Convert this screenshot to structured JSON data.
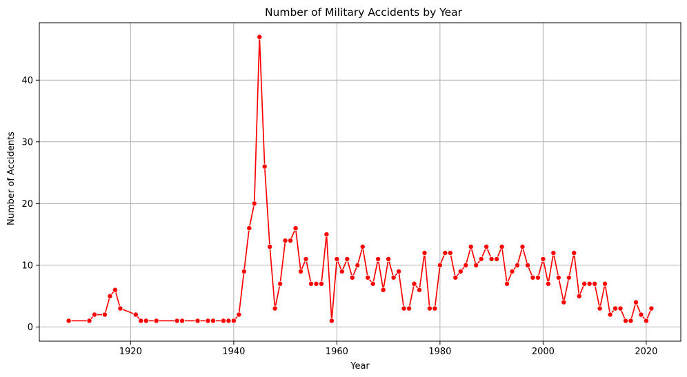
{
  "chart_data": {
    "type": "line",
    "title": "Number of Military Accidents by Year",
    "xlabel": "Year",
    "ylabel": "Number of Accidents",
    "xlim": [
      1902.3,
      2026.7
    ],
    "ylim": [
      -2.3,
      49.3
    ],
    "xticks": [
      1920,
      1940,
      1960,
      1980,
      2000,
      2020
    ],
    "yticks": [
      0,
      10,
      20,
      30,
      40
    ],
    "grid": true,
    "color": "#ff0000",
    "marker": "circle",
    "series": [
      {
        "x": [
          1908,
          1912,
          1913,
          1915,
          1916,
          1917,
          1918,
          1921,
          1922,
          1923,
          1925,
          1929,
          1930,
          1933,
          1935,
          1936,
          1938,
          1939,
          1940,
          1941,
          1942,
          1943,
          1944,
          1945,
          1946,
          1947,
          1948,
          1949,
          1950,
          1951,
          1952,
          1953,
          1954,
          1955,
          1956,
          1957,
          1958,
          1959,
          1960,
          1961,
          1962,
          1963,
          1964,
          1965,
          1966,
          1967,
          1968,
          1969,
          1970,
          1971,
          1972,
          1973,
          1974,
          1975,
          1976,
          1977,
          1978,
          1979,
          1980,
          1981,
          1982,
          1983,
          1984,
          1985,
          1986,
          1987,
          1988,
          1989,
          1990,
          1991,
          1992,
          1993,
          1994,
          1995,
          1996,
          1997,
          1998,
          1999,
          2000,
          2001,
          2002,
          2003,
          2004,
          2005,
          2006,
          2007,
          2008,
          2009,
          2010,
          2011,
          2012,
          2013,
          2014,
          2015,
          2016,
          2017,
          2018,
          2019,
          2020,
          2021
        ],
        "y": [
          1,
          1,
          2,
          2,
          5,
          6,
          3,
          2,
          1,
          1,
          1,
          1,
          1,
          1,
          1,
          1,
          1,
          1,
          1,
          2,
          9,
          16,
          20,
          47,
          26,
          13,
          3,
          7,
          14,
          14,
          16,
          9,
          11,
          7,
          7,
          7,
          15,
          1,
          11,
          9,
          11,
          8,
          10,
          13,
          8,
          7,
          11,
          6,
          11,
          8,
          9,
          3,
          3,
          7,
          6,
          12,
          3,
          3,
          10,
          12,
          12,
          8,
          9,
          10,
          13,
          10,
          11,
          13,
          11,
          11,
          13,
          7,
          9,
          10,
          13,
          10,
          8,
          8,
          11,
          7,
          12,
          8,
          4,
          8,
          12,
          5,
          7,
          7,
          7,
          3,
          7,
          2,
          3,
          3,
          1,
          1,
          4,
          2,
          1,
          3
        ]
      }
    ]
  }
}
